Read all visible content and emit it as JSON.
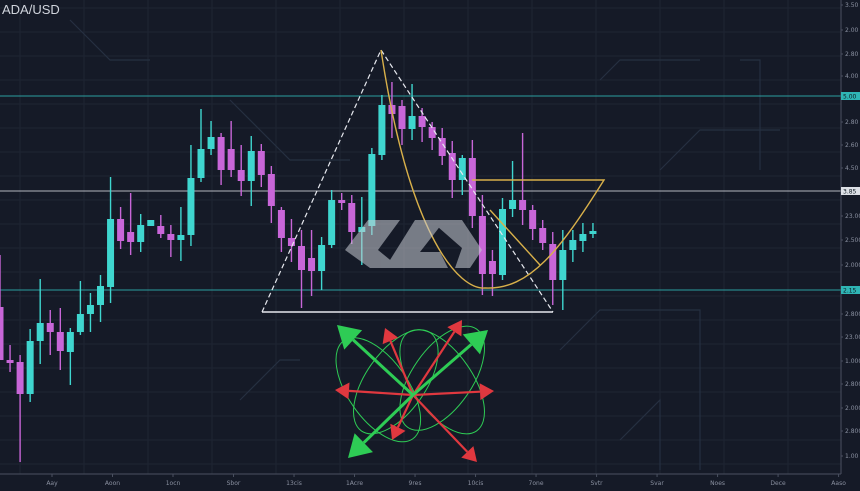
{
  "header": {
    "symbol": "ADA/USD"
  },
  "colors": {
    "background": "#151a27",
    "bull": "#3fd6cf",
    "bear": "#c866d8",
    "level": "#2fb5b5",
    "pivot": "#cfd2d8",
    "cup": "#d8b04a",
    "arrow_up": "#2ecc55",
    "arrow_down": "#e0383f"
  },
  "icons": {
    "center": "logo-mark"
  },
  "chart_data": {
    "type": "candlestick",
    "title": "ADA/USD",
    "grid": true,
    "y_axis_labels": [
      "3.50",
      "2.00",
      "2.80",
      "4.00",
      "2.80",
      "2.60",
      "4.50",
      "23.00",
      "2.500",
      "2.000",
      "2.800",
      "23.00",
      "1.000",
      "2.800",
      "2.000",
      "2.800",
      "1.00"
    ],
    "level_badges": [
      {
        "label": "5.00",
        "price": 404,
        "kind": "level"
      },
      {
        "label": "3.85",
        "price": 309,
        "kind": "pivot"
      },
      {
        "label": "2.15",
        "price": 210,
        "kind": "level"
      }
    ],
    "x_axis_labels": [
      "Aay",
      "Aoon",
      "1ocn",
      "Sbor",
      "13cis",
      "1Acre",
      "9res",
      "10cis",
      "7one",
      "Svtr",
      "Svar",
      "Noes",
      "Dece",
      "Aaso"
    ],
    "candles": [
      [
        193,
        245,
        140,
        140
      ],
      [
        140,
        155,
        128,
        137
      ],
      [
        138,
        145,
        38,
        106
      ],
      [
        106,
        171,
        98,
        159
      ],
      [
        159,
        221,
        136,
        177
      ],
      [
        177,
        190,
        145,
        168
      ],
      [
        168,
        192,
        130,
        149
      ],
      [
        148,
        172,
        115,
        168
      ],
      [
        168,
        219,
        165,
        186
      ],
      [
        186,
        207,
        168,
        195
      ],
      [
        195,
        225,
        178,
        214
      ],
      [
        213,
        323,
        197,
        281
      ],
      [
        281,
        293,
        251,
        259
      ],
      [
        268,
        307,
        245,
        258
      ],
      [
        258,
        286,
        248,
        275
      ],
      [
        274,
        280,
        274,
        280
      ],
      [
        274,
        285,
        262,
        266
      ],
      [
        266,
        275,
        243,
        260
      ],
      [
        260,
        293,
        239,
        265
      ],
      [
        265,
        355,
        254,
        322
      ],
      [
        322,
        391,
        318,
        351
      ],
      [
        351,
        379,
        345,
        363
      ],
      [
        363,
        367,
        315,
        330
      ],
      [
        351,
        379,
        323,
        330
      ],
      [
        330,
        355,
        304,
        319
      ],
      [
        319,
        364,
        294,
        349
      ],
      [
        349,
        356,
        313,
        325
      ],
      [
        326,
        334,
        277,
        294
      ],
      [
        290,
        293,
        248,
        262
      ],
      [
        262,
        281,
        238,
        254
      ],
      [
        254,
        270,
        192,
        230
      ],
      [
        242,
        270,
        204,
        229
      ],
      [
        229,
        263,
        210,
        255
      ],
      [
        255,
        310,
        252,
        300
      ],
      [
        300,
        307,
        290,
        297
      ],
      [
        297,
        305,
        256,
        268
      ],
      [
        268,
        303,
        235,
        273
      ],
      [
        274,
        352,
        265,
        346
      ],
      [
        345,
        405,
        340,
        395
      ],
      [
        395,
        418,
        362,
        386
      ],
      [
        394,
        400,
        355,
        371
      ],
      [
        371,
        416,
        360,
        384
      ],
      [
        384,
        392,
        358,
        373
      ],
      [
        373,
        378,
        350,
        362
      ],
      [
        362,
        372,
        335,
        344
      ],
      [
        347,
        359,
        302,
        320
      ],
      [
        320,
        345,
        305,
        342
      ],
      [
        342,
        360,
        272,
        284
      ],
      [
        284,
        305,
        205,
        226
      ],
      [
        239,
        250,
        204,
        226
      ],
      [
        225,
        302,
        220,
        291
      ],
      [
        291,
        339,
        283,
        300
      ],
      [
        300,
        367,
        275,
        290
      ],
      [
        290,
        295,
        260,
        271
      ],
      [
        272,
        280,
        250,
        257
      ],
      [
        256,
        268,
        195,
        220
      ],
      [
        220,
        270,
        190,
        250
      ],
      [
        250,
        270,
        238,
        260
      ],
      [
        259,
        277,
        248,
        266
      ],
      [
        266,
        277,
        262,
        269
      ]
    ],
    "candle_fields": [
      "open",
      "high",
      "low",
      "close"
    ]
  }
}
